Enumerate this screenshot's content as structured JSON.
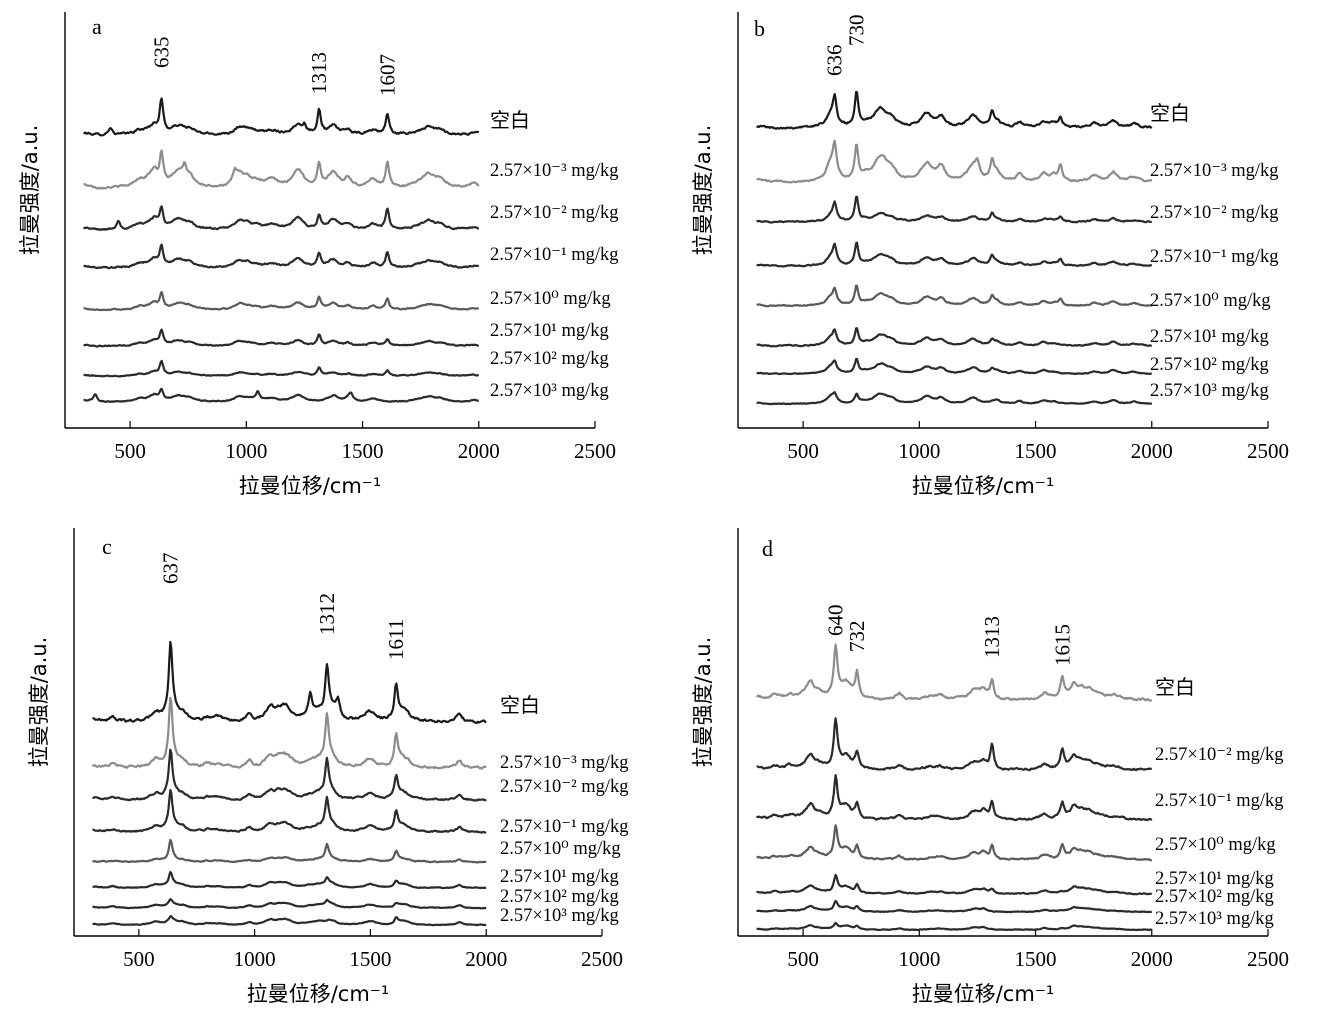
{
  "figure": {
    "colors": {
      "dark": "#1a1a1a",
      "mid": "#4a4a4a",
      "light": "#8c8c8c",
      "axis": "#000000"
    }
  },
  "chart_data": [
    {
      "type": "line",
      "panel_label": "a",
      "title": "",
      "xlabel": "拉曼位移/cm⁻¹",
      "ylabel": "拉曼强度/a.u.",
      "xlim": [
        220,
        2500
      ],
      "x_ticks": [
        "500",
        "1000",
        "1500",
        "2000",
        "2500"
      ],
      "x_tick_values": [
        500,
        1000,
        1500,
        2000,
        2500
      ],
      "grid": false,
      "peak_labels": [
        {
          "text": "635",
          "x": 635
        },
        {
          "text": "1313",
          "x": 1313
        },
        {
          "text": "1607",
          "x": 1607
        }
      ],
      "series": [
        {
          "name": "空白",
          "color": "#1a1a1a",
          "scale": 1.0,
          "noise": 0.22,
          "peaks": [
            [
              635,
              1.0
            ],
            [
              1313,
              0.72
            ],
            [
              1607,
              0.62
            ],
            [
              415,
              0.22
            ],
            [
              1250,
              0.2
            ]
          ]
        },
        {
          "name": "2.57×10⁻³ mg/kg",
          "color": "#8c8c8c",
          "scale": 0.9,
          "noise": 0.45,
          "peaks": [
            [
              635,
              1.0
            ],
            [
              1313,
              0.75
            ],
            [
              1607,
              0.8
            ],
            [
              735,
              0.35
            ],
            [
              950,
              0.3
            ]
          ]
        },
        {
          "name": "2.57×10⁻² mg/kg",
          "color": "#2a2a2a",
          "scale": 0.75,
          "noise": 0.35,
          "peaks": [
            [
              635,
              0.8
            ],
            [
              1313,
              0.5
            ],
            [
              1607,
              0.8
            ],
            [
              450,
              0.35
            ]
          ]
        },
        {
          "name": "2.57×10⁻¹ mg/kg",
          "color": "#2a2a2a",
          "scale": 0.7,
          "noise": 0.3,
          "peaks": [
            [
              635,
              0.85
            ],
            [
              1313,
              0.6
            ],
            [
              1607,
              0.65
            ]
          ]
        },
        {
          "name": "2.57×10⁰ mg/kg",
          "color": "#5a5a5a",
          "scale": 0.55,
          "noise": 0.3,
          "peaks": [
            [
              635,
              0.8
            ],
            [
              1313,
              0.65
            ],
            [
              1607,
              0.6
            ]
          ]
        },
        {
          "name": "2.57×10¹ mg/kg",
          "color": "#2a2a2a",
          "scale": 0.5,
          "noise": 0.25,
          "peaks": [
            [
              635,
              0.9
            ],
            [
              1313,
              0.6
            ],
            [
              1607,
              0.4
            ]
          ]
        },
        {
          "name": "2.57×10² mg/kg",
          "color": "#2a2a2a",
          "scale": 0.45,
          "noise": 0.2,
          "peaks": [
            [
              635,
              0.9
            ],
            [
              1313,
              0.55
            ],
            [
              1607,
              0.35
            ]
          ]
        },
        {
          "name": "2.57×10³ mg/kg",
          "color": "#2a2a2a",
          "scale": 0.45,
          "noise": 0.35,
          "peaks": [
            [
              635,
              0.7
            ],
            [
              1050,
              0.5
            ],
            [
              1450,
              0.45
            ],
            [
              350,
              0.5
            ]
          ]
        }
      ]
    },
    {
      "type": "line",
      "panel_label": "b",
      "title": "",
      "xlabel": "拉曼位移/cm⁻¹",
      "ylabel": "拉曼强度/a.u.",
      "xlim": [
        220,
        2500
      ],
      "x_ticks": [
        "500",
        "1000",
        "1500",
        "2000",
        "2500"
      ],
      "x_tick_values": [
        500,
        1000,
        1500,
        2000,
        2500
      ],
      "grid": false,
      "peak_labels": [
        {
          "text": "636",
          "x": 636
        },
        {
          "text": "730",
          "x": 730
        }
      ],
      "series": [
        {
          "name": "空白",
          "color": "#1a1a1a",
          "scale": 1.0,
          "noise": 0.3,
          "peaks": [
            [
              636,
              0.75
            ],
            [
              730,
              1.15
            ],
            [
              1313,
              0.45
            ],
            [
              1607,
              0.3
            ]
          ]
        },
        {
          "name": "2.57×10⁻³ mg/kg",
          "color": "#8c8c8c",
          "scale": 0.9,
          "noise": 0.45,
          "peaks": [
            [
              636,
              1.0
            ],
            [
              730,
              1.25
            ],
            [
              1313,
              0.6
            ],
            [
              1607,
              0.55
            ],
            [
              1250,
              0.4
            ]
          ]
        },
        {
          "name": "2.57×10⁻² mg/kg",
          "color": "#2a2a2a",
          "scale": 0.65,
          "noise": 0.2,
          "peaks": [
            [
              636,
              0.8
            ],
            [
              730,
              1.25
            ],
            [
              1313,
              0.35
            ],
            [
              1607,
              0.2
            ]
          ]
        },
        {
          "name": "2.57×10⁻¹ mg/kg",
          "color": "#2a2a2a",
          "scale": 0.6,
          "noise": 0.3,
          "peaks": [
            [
              636,
              0.9
            ],
            [
              730,
              1.2
            ],
            [
              1313,
              0.45
            ],
            [
              1607,
              0.35
            ]
          ]
        },
        {
          "name": "2.57×10⁰ mg/kg",
          "color": "#5a5a5a",
          "scale": 0.55,
          "noise": 0.35,
          "peaks": [
            [
              636,
              0.7
            ],
            [
              730,
              1.15
            ],
            [
              1313,
              0.45
            ],
            [
              1607,
              0.35
            ]
          ]
        },
        {
          "name": "2.57×10¹ mg/kg",
          "color": "#2a2a2a",
          "scale": 0.5,
          "noise": 0.35,
          "peaks": [
            [
              636,
              0.7
            ],
            [
              730,
              1.1
            ],
            [
              1313,
              0.3
            ]
          ]
        },
        {
          "name": "2.57×10² mg/kg",
          "color": "#2a2a2a",
          "scale": 0.45,
          "noise": 0.35,
          "peaks": [
            [
              636,
              0.6
            ],
            [
              730,
              1.0
            ],
            [
              1313,
              0.25
            ]
          ]
        },
        {
          "name": "2.57×10³ mg/kg",
          "color": "#2a2a2a",
          "scale": 0.4,
          "noise": 0.4,
          "peaks": [
            [
              636,
              0.5
            ],
            [
              730,
              0.7
            ]
          ]
        }
      ]
    },
    {
      "type": "line",
      "panel_label": "c",
      "title": "",
      "xlabel": "拉曼位移/cm⁻¹",
      "ylabel": "拉曼强度/a.u.",
      "xlim": [
        220,
        2500
      ],
      "x_ticks": [
        "500",
        "1000",
        "1500",
        "2000",
        "2500"
      ],
      "x_tick_values": [
        500,
        1000,
        1500,
        2000,
        2500
      ],
      "grid": false,
      "peak_labels": [
        {
          "text": "637",
          "x": 637
        },
        {
          "text": "1312",
          "x": 1312
        },
        {
          "text": "1611",
          "x": 1611
        }
      ],
      "series": [
        {
          "name": "空白",
          "color": "#1a1a1a",
          "scale": 1.0,
          "noise": 0.35,
          "peaks": [
            [
              637,
              1.9
            ],
            [
              1312,
              1.25
            ],
            [
              1611,
              0.9
            ],
            [
              1240,
              0.55
            ],
            [
              1360,
              0.45
            ]
          ]
        },
        {
          "name": "2.57×10⁻³ mg/kg",
          "color": "#8c8c8c",
          "scale": 1.0,
          "noise": 0.3,
          "peaks": [
            [
              637,
              1.7
            ],
            [
              1312,
              1.2
            ],
            [
              1611,
              0.8
            ]
          ]
        },
        {
          "name": "2.57×10⁻² mg/kg",
          "color": "#2a2a2a",
          "scale": 0.75,
          "noise": 0.3,
          "peaks": [
            [
              637,
              1.6
            ],
            [
              1312,
              1.3
            ],
            [
              1611,
              0.8
            ]
          ]
        },
        {
          "name": "2.57×10⁻¹ mg/kg",
          "color": "#2a2a2a",
          "scale": 0.65,
          "noise": 0.3,
          "peaks": [
            [
              637,
              1.5
            ],
            [
              1312,
              1.2
            ],
            [
              1611,
              0.8
            ]
          ]
        },
        {
          "name": "2.57×10⁰ mg/kg",
          "color": "#5a5a5a",
          "scale": 0.45,
          "noise": 0.2,
          "peaks": [
            [
              637,
              1.2
            ],
            [
              1312,
              0.9
            ],
            [
              1611,
              0.6
            ]
          ]
        },
        {
          "name": "2.57×10¹ mg/kg",
          "color": "#2a2a2a",
          "scale": 0.35,
          "noise": 0.35,
          "peaks": [
            [
              637,
              0.9
            ],
            [
              1312,
              0.5
            ],
            [
              1611,
              0.4
            ]
          ]
        },
        {
          "name": "2.57×10² mg/kg",
          "color": "#2a2a2a",
          "scale": 0.3,
          "noise": 0.35,
          "peaks": [
            [
              637,
              0.5
            ],
            [
              1312,
              0.4
            ],
            [
              1611,
              0.3
            ]
          ]
        },
        {
          "name": "2.57×10³ mg/kg",
          "color": "#2a2a2a",
          "scale": 0.3,
          "noise": 0.4,
          "peaks": [
            [
              637,
              0.4
            ],
            [
              1611,
              0.5
            ]
          ]
        }
      ]
    },
    {
      "type": "line",
      "panel_label": "d",
      "title": "",
      "xlabel": "拉曼位移/cm⁻¹",
      "ylabel": "拉曼强度/a.u.",
      "xlim": [
        220,
        2500
      ],
      "x_ticks": [
        "500",
        "1000",
        "1500",
        "2000",
        "2500"
      ],
      "x_tick_values": [
        500,
        1000,
        1500,
        2000,
        2500
      ],
      "grid": false,
      "peak_labels": [
        {
          "text": "640",
          "x": 640
        },
        {
          "text": "732",
          "x": 732
        },
        {
          "text": "1313",
          "x": 1313
        },
        {
          "text": "1615",
          "x": 1615
        }
      ],
      "series": [
        {
          "name": "空白",
          "color": "#8c8c8c",
          "scale": 1.0,
          "noise": 0.35,
          "peaks": [
            [
              640,
              1.4
            ],
            [
              732,
              0.75
            ],
            [
              1313,
              0.55
            ],
            [
              1615,
              0.5
            ]
          ]
        },
        {
          "name": "2.57×10⁻² mg/kg",
          "color": "#2a2a2a",
          "scale": 0.95,
          "noise": 0.3,
          "peaks": [
            [
              640,
              1.4
            ],
            [
              732,
              0.5
            ],
            [
              1313,
              0.75
            ],
            [
              1615,
              0.5
            ]
          ]
        },
        {
          "name": "2.57×10⁻¹ mg/kg",
          "color": "#2a2a2a",
          "scale": 0.85,
          "noise": 0.35,
          "peaks": [
            [
              640,
              1.3
            ],
            [
              732,
              0.5
            ],
            [
              1313,
              0.6
            ],
            [
              1615,
              0.45
            ]
          ]
        },
        {
          "name": "2.57×10⁰ mg/kg",
          "color": "#5a5a5a",
          "scale": 0.7,
          "noise": 0.35,
          "peaks": [
            [
              640,
              1.2
            ],
            [
              732,
              0.5
            ],
            [
              1313,
              0.55
            ],
            [
              1615,
              0.45
            ]
          ]
        },
        {
          "name": "2.57×10¹ mg/kg",
          "color": "#2a2a2a",
          "scale": 0.45,
          "noise": 0.35,
          "peaks": [
            [
              640,
              1.0
            ],
            [
              732,
              0.5
            ],
            [
              1313,
              0.3
            ]
          ]
        },
        {
          "name": "2.57×10² mg/kg",
          "color": "#2a2a2a",
          "scale": 0.35,
          "noise": 0.3,
          "peaks": [
            [
              640,
              0.7
            ],
            [
              732,
              0.4
            ]
          ]
        },
        {
          "name": "2.57×10³ mg/kg",
          "color": "#2a2a2a",
          "scale": 0.3,
          "noise": 0.3,
          "peaks": [
            [
              640,
              0.5
            ],
            [
              732,
              0.3
            ]
          ]
        }
      ]
    }
  ]
}
